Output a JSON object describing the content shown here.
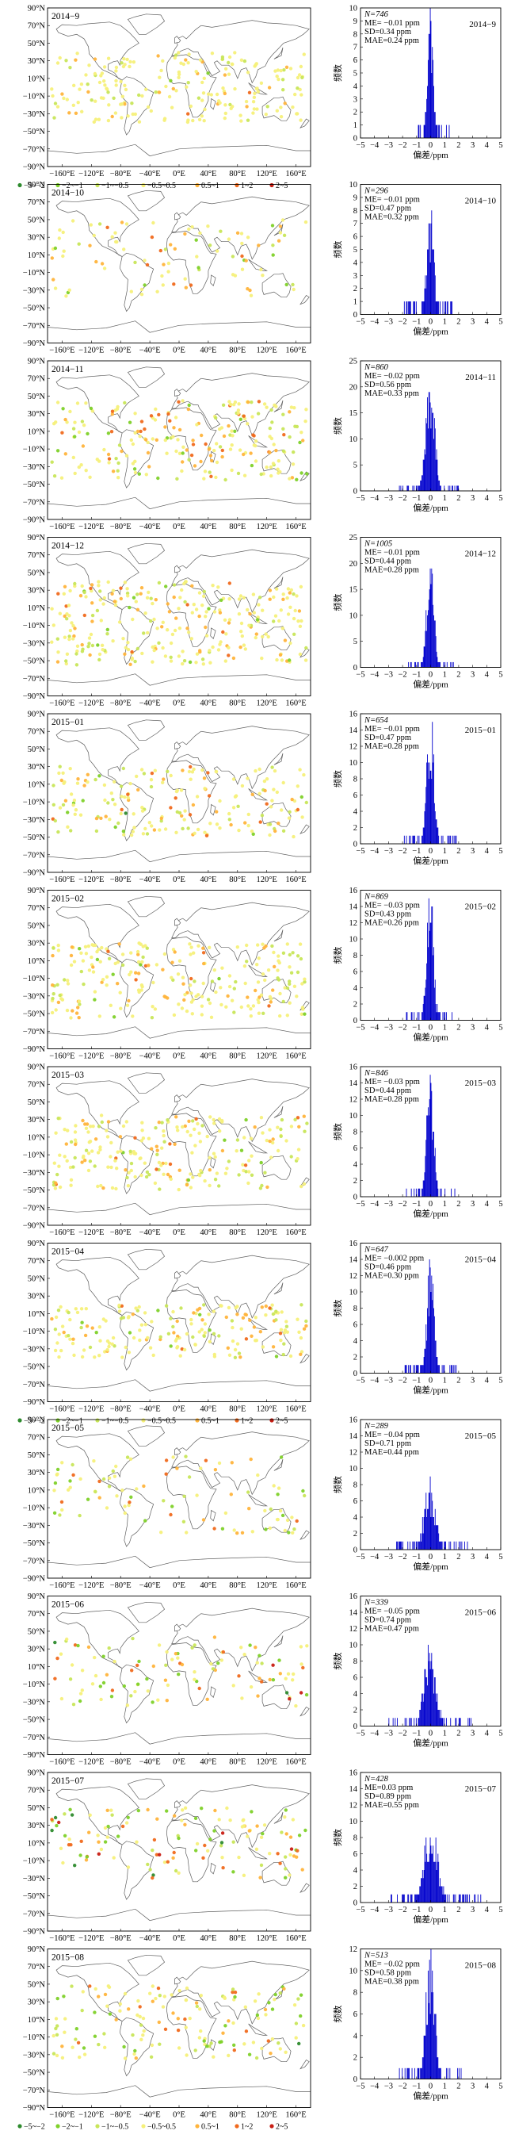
{
  "map_panel": {
    "lat_ticks": [
      "90°N",
      "70°N",
      "50°N",
      "30°N",
      "10°N",
      "−10°N",
      "−30°N",
      "−50°N",
      "−70°N",
      "−90°N"
    ],
    "lon_ticks": [
      "−160°E",
      "−120°E",
      "−80°E",
      "−40°E",
      "0°E",
      "40°E",
      "80°E",
      "120°E",
      "160°E"
    ]
  },
  "legend": {
    "items": [
      {
        "label": "−5~−2",
        "color": "#2e8b2e"
      },
      {
        "label": "−2~−1",
        "color": "#7fd12a"
      },
      {
        "label": "−1~−0.5",
        "color": "#c8e65a"
      },
      {
        "label": "−0.5~0.5",
        "color": "#f5f07a"
      },
      {
        "label": "0.5~1",
        "color": "#ffb43c"
      },
      {
        "label": "1~2",
        "color": "#f06a1e"
      },
      {
        "label": "2~5",
        "color": "#c81e14"
      }
    ]
  },
  "histogram": {
    "xlabel": "偏差/ppm",
    "ylabel": "频数",
    "bar_color": "#0000cc",
    "x_ticks": [
      "−5",
      "−4",
      "−3",
      "−2",
      "−1",
      "0",
      "1",
      "2",
      "3",
      "4",
      "5"
    ],
    "xlim": [
      -5,
      5
    ]
  },
  "chart_data": [
    {
      "type": "scatter",
      "title": "2014−9",
      "legend_shown": true,
      "histogram": {
        "type": "bar",
        "ylim": [
          0,
          10
        ],
        "yticks": [
          "0",
          "1",
          "2",
          "3",
          "4",
          "5",
          "6",
          "7",
          "8",
          "9",
          "10"
        ],
        "n": "N=746",
        "me": "ME= −0.01 ppm",
        "sd": "SD=0.34 ppm",
        "mae": "MAE=0.24 ppm",
        "mean": -0.01,
        "sd_value": 0.34,
        "peak": 10,
        "lon_mode": "all",
        "lat_band": [
          -40,
          40
        ],
        "density": 1.0
      }
    },
    {
      "type": "scatter",
      "title": "2014−10",
      "legend_shown": false,
      "histogram": {
        "type": "bar",
        "ylim": [
          0,
          10
        ],
        "yticks": [
          "0",
          "1",
          "2",
          "3",
          "4",
          "5",
          "6",
          "7",
          "8",
          "9",
          "10"
        ],
        "n": "N=296",
        "me": "ME= −0.01 ppm",
        "sd": "SD=0.47 ppm",
        "mae": "MAE=0.32 ppm",
        "mean": -0.01,
        "sd_value": 0.47,
        "peak": 7,
        "lon_mode": "all",
        "lat_band": [
          -40,
          50
        ],
        "density": 0.45
      }
    },
    {
      "type": "scatter",
      "title": "2014−11",
      "legend_shown": false,
      "histogram": {
        "type": "bar",
        "ylim": [
          0,
          25
        ],
        "yticks": [
          "0",
          "5",
          "10",
          "15",
          "20",
          "25"
        ],
        "n": "N=860",
        "me": "ME= −0.02 ppm",
        "sd": "SD=0.56 ppm",
        "mae": "MAE=0.33 ppm",
        "mean": -0.02,
        "sd_value": 0.56,
        "peak": 20,
        "lon_mode": "all",
        "lat_band": [
          -45,
          45
        ],
        "density": 1.1
      }
    },
    {
      "type": "scatter",
      "title": "2014−12",
      "legend_shown": false,
      "histogram": {
        "type": "bar",
        "ylim": [
          0,
          25
        ],
        "yticks": [
          "0",
          "5",
          "10",
          "15",
          "20",
          "25"
        ],
        "n": "N=1005",
        "me": "ME= −0.01 ppm",
        "sd": "SD=0.44 ppm",
        "mae": "MAE=0.28 ppm",
        "mean": -0.01,
        "sd_value": 0.44,
        "peak": 22,
        "lon_mode": "all",
        "lat_band": [
          -55,
          40
        ],
        "density": 1.3
      }
    },
    {
      "type": "scatter",
      "title": "2015−01",
      "legend_shown": false,
      "histogram": {
        "type": "bar",
        "ylim": [
          0,
          16
        ],
        "yticks": [
          "0",
          "2",
          "4",
          "6",
          "8",
          "10",
          "12",
          "14",
          "16"
        ],
        "n": "N=654",
        "me": "ME= −0.01 ppm",
        "sd": "SD=0.47 ppm",
        "mae": "MAE=0.28 ppm",
        "mean": -0.01,
        "sd_value": 0.47,
        "peak": 15,
        "lon_mode": "all",
        "lat_band": [
          -50,
          30
        ],
        "density": 0.9
      }
    },
    {
      "type": "scatter",
      "title": "2015−02",
      "legend_shown": false,
      "histogram": {
        "type": "bar",
        "ylim": [
          0,
          16
        ],
        "yticks": [
          "0",
          "2",
          "4",
          "6",
          "8",
          "10",
          "12",
          "14",
          "16"
        ],
        "n": "N=869",
        "me": "ME= −0.03 ppm",
        "sd": "SD=0.43 ppm",
        "mae": "MAE=0.26 ppm",
        "mean": -0.03,
        "sd_value": 0.43,
        "peak": 15,
        "lon_mode": "all",
        "lat_band": [
          -55,
          30
        ],
        "density": 1.15
      }
    },
    {
      "type": "scatter",
      "title": "2015−03",
      "legend_shown": false,
      "histogram": {
        "type": "bar",
        "ylim": [
          0,
          16
        ],
        "yticks": [
          "0",
          "2",
          "4",
          "6",
          "8",
          "10",
          "12",
          "14",
          "16"
        ],
        "n": "N=846",
        "me": "ME= −0.03 ppm",
        "sd": "SD=0.44 ppm",
        "mae": "MAE=0.28 ppm",
        "mean": -0.03,
        "sd_value": 0.44,
        "peak": 15,
        "lon_mode": "all",
        "lat_band": [
          -50,
          35
        ],
        "density": 1.1
      }
    },
    {
      "type": "scatter",
      "title": "2015−04",
      "legend_shown": true,
      "histogram": {
        "type": "bar",
        "ylim": [
          0,
          16
        ],
        "yticks": [
          "0",
          "2",
          "4",
          "6",
          "8",
          "10",
          "12",
          "14",
          "16"
        ],
        "n": "N=647",
        "me": "ME= −0.002 ppm",
        "sd": "SD=0.46 ppm",
        "mae": "MAE=0.30 ppm",
        "mean": -0.002,
        "sd_value": 0.46,
        "peak": 13,
        "lon_mode": "all",
        "lat_band": [
          -40,
          20
        ],
        "density": 0.9
      }
    },
    {
      "type": "scatter",
      "title": "2015−05",
      "legend_shown": false,
      "histogram": {
        "type": "bar",
        "ylim": [
          0,
          16
        ],
        "yticks": [
          "0",
          "2",
          "4",
          "6",
          "8",
          "10",
          "12",
          "14",
          "16"
        ],
        "n": "N=289",
        "me": "ME= −0.04 ppm",
        "sd": "SD=0.71 ppm",
        "mae": "MAE=0.44 ppm",
        "mean": -0.04,
        "sd_value": 0.71,
        "peak": 8,
        "lon_mode": "all",
        "lat_band": [
          -40,
          50
        ],
        "density": 0.45
      }
    },
    {
      "type": "scatter",
      "title": "2015−06",
      "legend_shown": false,
      "histogram": {
        "type": "bar",
        "ylim": [
          0,
          16
        ],
        "yticks": [
          "0",
          "2",
          "4",
          "6",
          "8",
          "10",
          "12",
          "14",
          "16"
        ],
        "n": "N=339",
        "me": "ME= −0.05 ppm",
        "sd": "SD=0.74 ppm",
        "mae": "MAE=0.47 ppm",
        "mean": -0.05,
        "sd_value": 0.74,
        "peak": 9,
        "lon_mode": "all",
        "lat_band": [
          -35,
          45
        ],
        "density": 0.5
      }
    },
    {
      "type": "scatter",
      "title": "2015−07",
      "legend_shown": false,
      "histogram": {
        "type": "bar",
        "ylim": [
          0,
          16
        ],
        "yticks": [
          "0",
          "2",
          "4",
          "6",
          "8",
          "10",
          "12",
          "14",
          "16"
        ],
        "n": "N=428",
        "me": "ME=0.03 ppm",
        "sd": "SD=0.89 ppm",
        "mae": "MAE=0.55 ppm",
        "mean": 0.03,
        "sd_value": 0.89,
        "peak": 9,
        "lon_mode": "all",
        "lat_band": [
          -30,
          50
        ],
        "density": 0.6
      }
    },
    {
      "type": "scatter",
      "title": "2015−08",
      "legend_shown": true,
      "histogram": {
        "type": "bar",
        "ylim": [
          0,
          12
        ],
        "yticks": [
          "0",
          "2",
          "4",
          "6",
          "8",
          "10",
          "12"
        ],
        "n": "N=513",
        "me": "ME= −0.02 ppm",
        "sd": "SD=0.58 ppm",
        "mae": "MAE=0.38 ppm",
        "mean": -0.02,
        "sd_value": 0.58,
        "peak": 11,
        "lon_mode": "all",
        "lat_band": [
          -35,
          50
        ],
        "density": 0.7
      }
    }
  ]
}
